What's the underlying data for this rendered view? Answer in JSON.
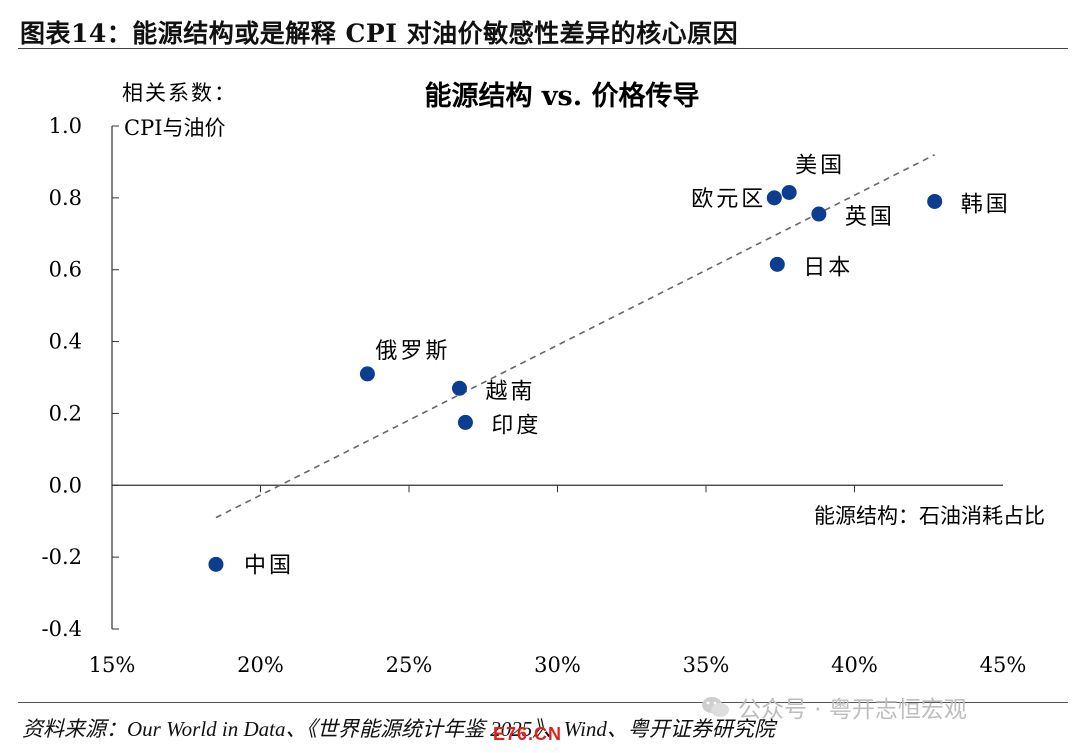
{
  "figure": {
    "title": "图表14：能源结构或是解释 CPI 对油价敏感性差异的核心原因",
    "source": "资料来源：Our World in Data、《世界能源统计年鉴 2025》、Wind、粤开证券研究院",
    "watermark": "公众号 · 粤开志恒宏观",
    "stamp": "E76.CN"
  },
  "chart_data": {
    "type": "scatter",
    "title": "能源结构 vs. 价格传导",
    "xlabel": "能源结构：石油消耗占比",
    "ylabel_line1": "相关系数：",
    "ylabel_line2": "CPI与油价",
    "xlim": [
      15,
      45
    ],
    "ylim": [
      -0.4,
      1.0
    ],
    "x_ticks": [
      15,
      20,
      25,
      30,
      35,
      40,
      45
    ],
    "x_tick_labels": [
      "15%",
      "20%",
      "25%",
      "30%",
      "35%",
      "40%",
      "45%"
    ],
    "y_ticks": [
      1.0,
      0.8,
      0.6,
      0.4,
      0.2,
      0.0,
      -0.2,
      -0.4
    ],
    "y_tick_labels": [
      "1.0",
      "0.8",
      "0.6",
      "0.4",
      "0.2",
      "0.0",
      "-0.2",
      "-0.4"
    ],
    "grid": false,
    "points": [
      {
        "label": "中国",
        "x": 18.5,
        "y": -0.22
      },
      {
        "label": "俄罗斯",
        "x": 23.6,
        "y": 0.31
      },
      {
        "label": "越南",
        "x": 26.7,
        "y": 0.27
      },
      {
        "label": "印度",
        "x": 26.9,
        "y": 0.175
      },
      {
        "label": "欧元区",
        "x": 37.3,
        "y": 0.8
      },
      {
        "label": "美国",
        "x": 37.8,
        "y": 0.815
      },
      {
        "label": "英国",
        "x": 38.8,
        "y": 0.755
      },
      {
        "label": "日本",
        "x": 37.4,
        "y": 0.615
      },
      {
        "label": "韩国",
        "x": 42.7,
        "y": 0.79
      }
    ],
    "trendline": {
      "x": [
        18.5,
        42.7
      ],
      "y": [
        -0.09,
        0.92
      ],
      "style": "dashed"
    },
    "colors": {
      "point": "#0b3d91",
      "trendline": "#666666",
      "axis": "#333333"
    }
  }
}
